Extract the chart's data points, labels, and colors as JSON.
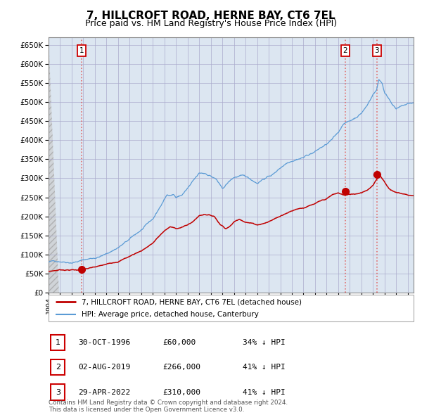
{
  "title": "7, HILLCROFT ROAD, HERNE BAY, CT6 7EL",
  "subtitle": "Price paid vs. HM Land Registry's House Price Index (HPI)",
  "ylim": [
    0,
    670000
  ],
  "yticks": [
    0,
    50000,
    100000,
    150000,
    200000,
    250000,
    300000,
    350000,
    400000,
    450000,
    500000,
    550000,
    600000,
    650000
  ],
  "xlim_start": 1994.0,
  "xlim_end": 2025.5,
  "sale_dates": [
    1996.83,
    2019.59,
    2022.33
  ],
  "sale_prices": [
    60000,
    266000,
    310000
  ],
  "sale_labels": [
    "1",
    "2",
    "3"
  ],
  "hpi_color": "#5b9bd5",
  "price_color": "#c00000",
  "dashed_color": "#e06060",
  "background_plot": "#dce6f1",
  "grid_color": "#aaaacc",
  "legend_line1": "7, HILLCROFT ROAD, HERNE BAY, CT6 7EL (detached house)",
  "legend_line2": "HPI: Average price, detached house, Canterbury",
  "table_data": [
    [
      "1",
      "30-OCT-1996",
      "£60,000",
      "34% ↓ HPI"
    ],
    [
      "2",
      "02-AUG-2019",
      "£266,000",
      "41% ↓ HPI"
    ],
    [
      "3",
      "29-APR-2022",
      "£310,000",
      "41% ↓ HPI"
    ]
  ],
  "footer": "Contains HM Land Registry data © Crown copyright and database right 2024.\nThis data is licensed under the Open Government Licence v3.0.",
  "title_fontsize": 11,
  "subtitle_fontsize": 9
}
